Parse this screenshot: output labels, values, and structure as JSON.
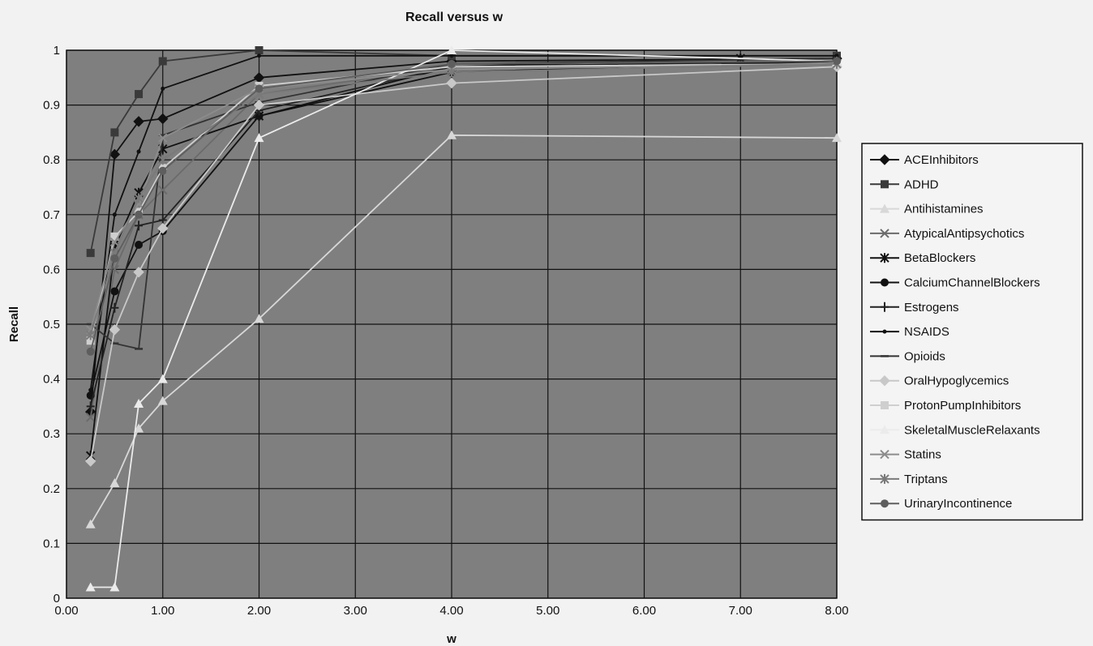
{
  "chart_data": {
    "type": "line",
    "title": "Recall versus w",
    "xlabel": "w",
    "ylabel": "Recall",
    "xlim": [
      0,
      8
    ],
    "ylim": [
      0,
      1
    ],
    "x_ticks": [
      "0.00",
      "1.00",
      "2.00",
      "3.00",
      "4.00",
      "5.00",
      "6.00",
      "7.00",
      "8.00"
    ],
    "y_ticks": [
      "0",
      "0.1",
      "0.2",
      "0.3",
      "0.4",
      "0.5",
      "0.6",
      "0.7",
      "0.8",
      "0.9",
      "1"
    ],
    "grid": true,
    "legend_position": "right",
    "background_color": "#7f7f7f",
    "series": [
      {
        "name": "ACEInhibitors",
        "color": "#111111",
        "marker": "diamond",
        "points": [
          [
            0.25,
            0.34
          ],
          [
            0.5,
            0.81
          ],
          [
            0.75,
            0.87
          ],
          [
            1.0,
            0.875
          ],
          [
            2.0,
            0.95
          ],
          [
            4.0,
            0.98
          ],
          [
            8.0,
            0.985
          ]
        ]
      },
      {
        "name": "ADHD",
        "color": "#3a3a3a",
        "marker": "square",
        "points": [
          [
            0.25,
            0.63
          ],
          [
            0.5,
            0.85
          ],
          [
            0.75,
            0.92
          ],
          [
            1.0,
            0.98
          ],
          [
            2.0,
            1.0
          ],
          [
            4.0,
            0.99
          ],
          [
            8.0,
            0.99
          ]
        ]
      },
      {
        "name": "Antihistamines",
        "color": "#d8d8d8",
        "marker": "triangle",
        "points": [
          [
            0.25,
            0.135
          ],
          [
            0.5,
            0.21
          ],
          [
            0.75,
            0.31
          ],
          [
            1.0,
            0.36
          ],
          [
            2.0,
            0.51
          ],
          [
            4.0,
            0.845
          ],
          [
            8.0,
            0.84
          ]
        ]
      },
      {
        "name": "AtypicalAntipsychotics",
        "color": "#6b6b6b",
        "marker": "x",
        "points": [
          [
            0.25,
            0.33
          ],
          [
            0.5,
            0.6
          ],
          [
            0.75,
            0.7
          ],
          [
            1.0,
            0.745
          ],
          [
            2.0,
            0.92
          ],
          [
            4.0,
            0.97
          ],
          [
            8.0,
            0.98
          ]
        ]
      },
      {
        "name": "BetaBlockers",
        "color": "#111111",
        "marker": "star",
        "points": [
          [
            0.25,
            0.26
          ],
          [
            0.5,
            0.64
          ],
          [
            0.75,
            0.74
          ],
          [
            1.0,
            0.82
          ],
          [
            2.0,
            0.88
          ],
          [
            4.0,
            0.97
          ],
          [
            7.0,
            0.985
          ],
          [
            8.0,
            0.98
          ]
        ]
      },
      {
        "name": "CalciumChannelBlockers",
        "color": "#111111",
        "marker": "circle",
        "points": [
          [
            0.25,
            0.37
          ],
          [
            0.5,
            0.56
          ],
          [
            0.75,
            0.645
          ],
          [
            1.0,
            0.67
          ],
          [
            2.0,
            0.88
          ],
          [
            4.0,
            0.96
          ],
          [
            8.0,
            0.98
          ]
        ]
      },
      {
        "name": "Estrogens",
        "color": "#222222",
        "marker": "plus",
        "points": [
          [
            0.25,
            0.35
          ],
          [
            0.5,
            0.53
          ],
          [
            0.75,
            0.68
          ],
          [
            1.0,
            0.69
          ],
          [
            2.0,
            0.89
          ],
          [
            4.0,
            0.97
          ],
          [
            8.0,
            0.98
          ]
        ]
      },
      {
        "name": "NSAIDS",
        "color": "#111111",
        "marker": "dot",
        "points": [
          [
            0.25,
            0.38
          ],
          [
            0.5,
            0.7
          ],
          [
            0.75,
            0.815
          ],
          [
            1.0,
            0.93
          ],
          [
            2.0,
            0.99
          ],
          [
            4.0,
            0.99
          ],
          [
            8.0,
            0.99
          ]
        ]
      },
      {
        "name": "Opioids",
        "color": "#333333",
        "marker": "dash",
        "points": [
          [
            0.25,
            0.5
          ],
          [
            0.5,
            0.465
          ],
          [
            0.75,
            0.455
          ],
          [
            1.0,
            0.845
          ],
          [
            2.0,
            0.905
          ],
          [
            4.0,
            0.975
          ],
          [
            8.0,
            0.985
          ]
        ]
      },
      {
        "name": "OralHypoglycemics",
        "color": "#c8c8c8",
        "marker": "diamond",
        "points": [
          [
            0.25,
            0.25
          ],
          [
            0.5,
            0.49
          ],
          [
            0.75,
            0.595
          ],
          [
            1.0,
            0.675
          ],
          [
            2.0,
            0.9
          ],
          [
            4.0,
            0.94
          ],
          [
            8.0,
            0.97
          ]
        ]
      },
      {
        "name": "ProtonPumpInhibitors",
        "color": "#cfcfcf",
        "marker": "square",
        "points": [
          [
            0.25,
            0.47
          ],
          [
            0.5,
            0.66
          ],
          [
            0.75,
            0.705
          ],
          [
            1.0,
            0.785
          ],
          [
            2.0,
            0.935
          ],
          [
            4.0,
            0.97
          ],
          [
            8.0,
            0.975
          ]
        ]
      },
      {
        "name": "SkeletalMuscleRelaxants",
        "color": "#ebebeb",
        "marker": "triangle",
        "points": [
          [
            0.25,
            0.02
          ],
          [
            0.5,
            0.02
          ],
          [
            0.75,
            0.355
          ],
          [
            1.0,
            0.4
          ],
          [
            2.0,
            0.84
          ],
          [
            4.0,
            1.0
          ],
          [
            8.0,
            0.98
          ]
        ]
      },
      {
        "name": "Statins",
        "color": "#8c8c8c",
        "marker": "x",
        "points": [
          [
            0.25,
            0.49
          ],
          [
            0.5,
            0.65
          ],
          [
            0.75,
            0.72
          ],
          [
            1.0,
            0.84
          ],
          [
            2.0,
            0.93
          ],
          [
            4.0,
            0.965
          ],
          [
            8.0,
            0.975
          ]
        ]
      },
      {
        "name": "Triptans",
        "color": "#7a7a7a",
        "marker": "star",
        "points": [
          [
            0.25,
            0.48
          ],
          [
            0.5,
            0.63
          ],
          [
            0.75,
            0.73
          ],
          [
            1.0,
            0.8
          ],
          [
            2.0,
            0.92
          ],
          [
            4.0,
            0.96
          ],
          [
            8.0,
            0.975
          ]
        ]
      },
      {
        "name": "UrinaryIncontinence",
        "color": "#5e5e5e",
        "marker": "circle",
        "points": [
          [
            0.25,
            0.45
          ],
          [
            0.5,
            0.62
          ],
          [
            0.75,
            0.7
          ],
          [
            1.0,
            0.78
          ],
          [
            2.0,
            0.93
          ],
          [
            4.0,
            0.975
          ],
          [
            8.0,
            0.98
          ]
        ]
      }
    ]
  }
}
